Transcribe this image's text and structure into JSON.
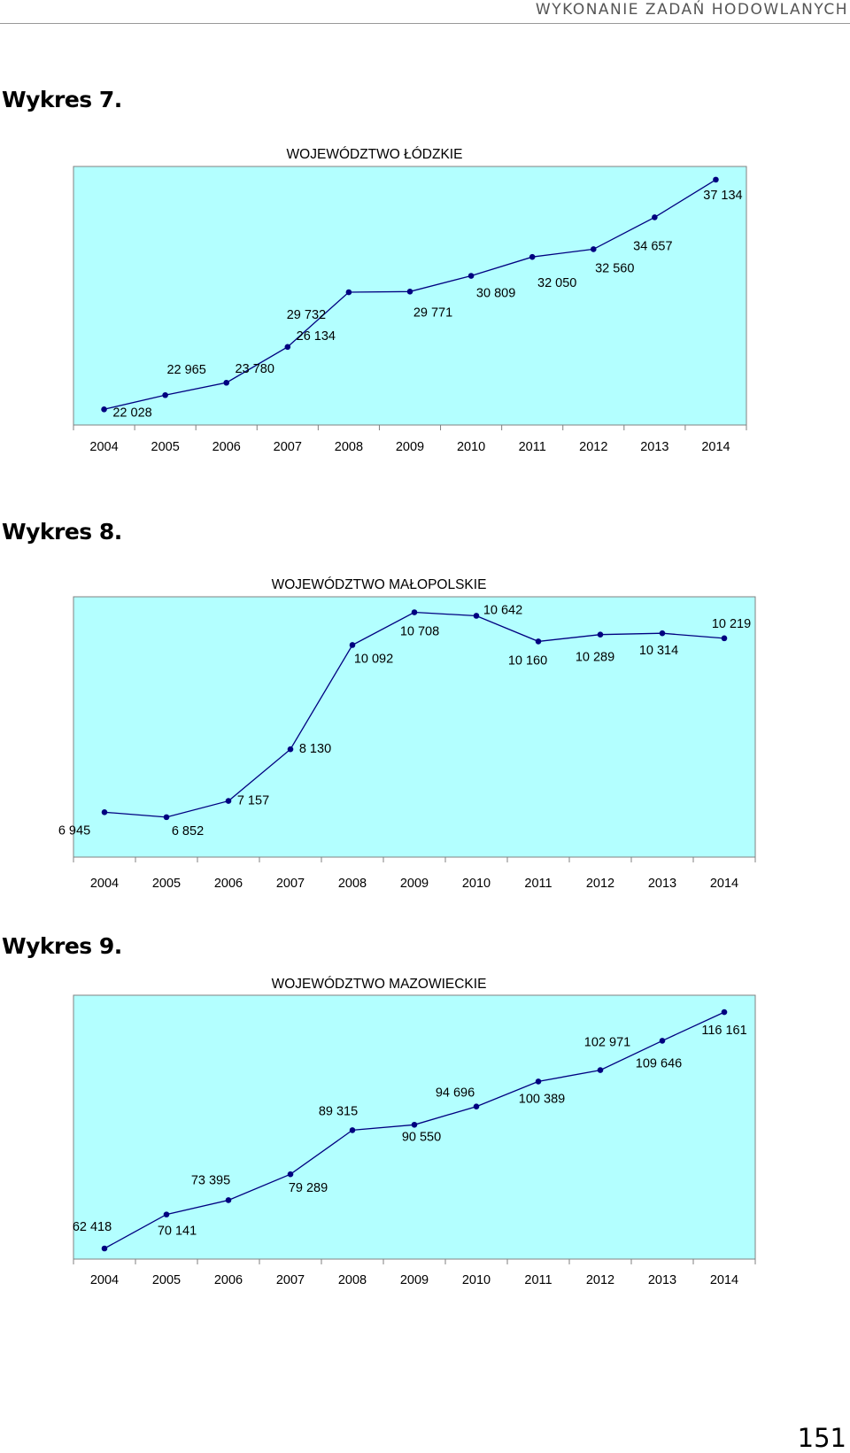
{
  "header": {
    "text": "WYKONANIE ZADAŃ HODOWLANYCH"
  },
  "captions": [
    "Wykres 7.",
    "Wykres 8.",
    "Wykres 9."
  ],
  "page_number": "151",
  "colors": {
    "plot_bg": "#b3ffff",
    "line": "#000080",
    "axis": "#808080"
  },
  "chart_data": [
    {
      "type": "line",
      "title": "WOJEWÓDZTWO ŁÓDZKIE",
      "categories": [
        "2004",
        "2005",
        "2006",
        "2007",
        "2008",
        "2009",
        "2010",
        "2011",
        "2012",
        "2013",
        "2014"
      ],
      "values": [
        22028,
        22965,
        23780,
        26134,
        29732,
        29771,
        30809,
        32050,
        32560,
        34657,
        37134
      ],
      "labels": [
        "22 028",
        "22 965",
        "23 780",
        "26 134",
        "29 732",
        "29 771",
        "30 809",
        "32 050",
        "32 560",
        "34 657",
        "37 134"
      ],
      "ylim": [
        21000,
        38000
      ],
      "grid": false
    },
    {
      "type": "line",
      "title": "WOJEWÓDZTWO MAŁOPOLSKIE",
      "categories": [
        "2004",
        "2005",
        "2006",
        "2007",
        "2008",
        "2009",
        "2010",
        "2011",
        "2012",
        "2013",
        "2014"
      ],
      "values": [
        6945,
        6852,
        7157,
        8130,
        10092,
        10708,
        10642,
        10160,
        10289,
        10314,
        10219
      ],
      "labels": [
        "6 945",
        "6 852",
        "7 157",
        "8 130",
        "10 092",
        "10 708",
        "10 642",
        "10 160",
        "10 289",
        "10 314",
        "10 219"
      ],
      "ylim": [
        6100,
        11000
      ],
      "grid": false
    },
    {
      "type": "line",
      "title": "WOJEWÓDZTWO MAZOWIECKIE",
      "categories": [
        "2004",
        "2005",
        "2006",
        "2007",
        "2008",
        "2009",
        "2010",
        "2011",
        "2012",
        "2013",
        "2014"
      ],
      "values": [
        62418,
        70141,
        73395,
        79289,
        89315,
        90550,
        94696,
        100389,
        102971,
        109646,
        116161
      ],
      "labels": [
        "62 418",
        "70 141",
        "73 395",
        "79 289",
        "89 315",
        "90 550",
        "94 696",
        "100 389",
        "102 971",
        "109 646",
        "116 161"
      ],
      "ylim": [
        60000,
        120000
      ],
      "grid": false
    }
  ]
}
